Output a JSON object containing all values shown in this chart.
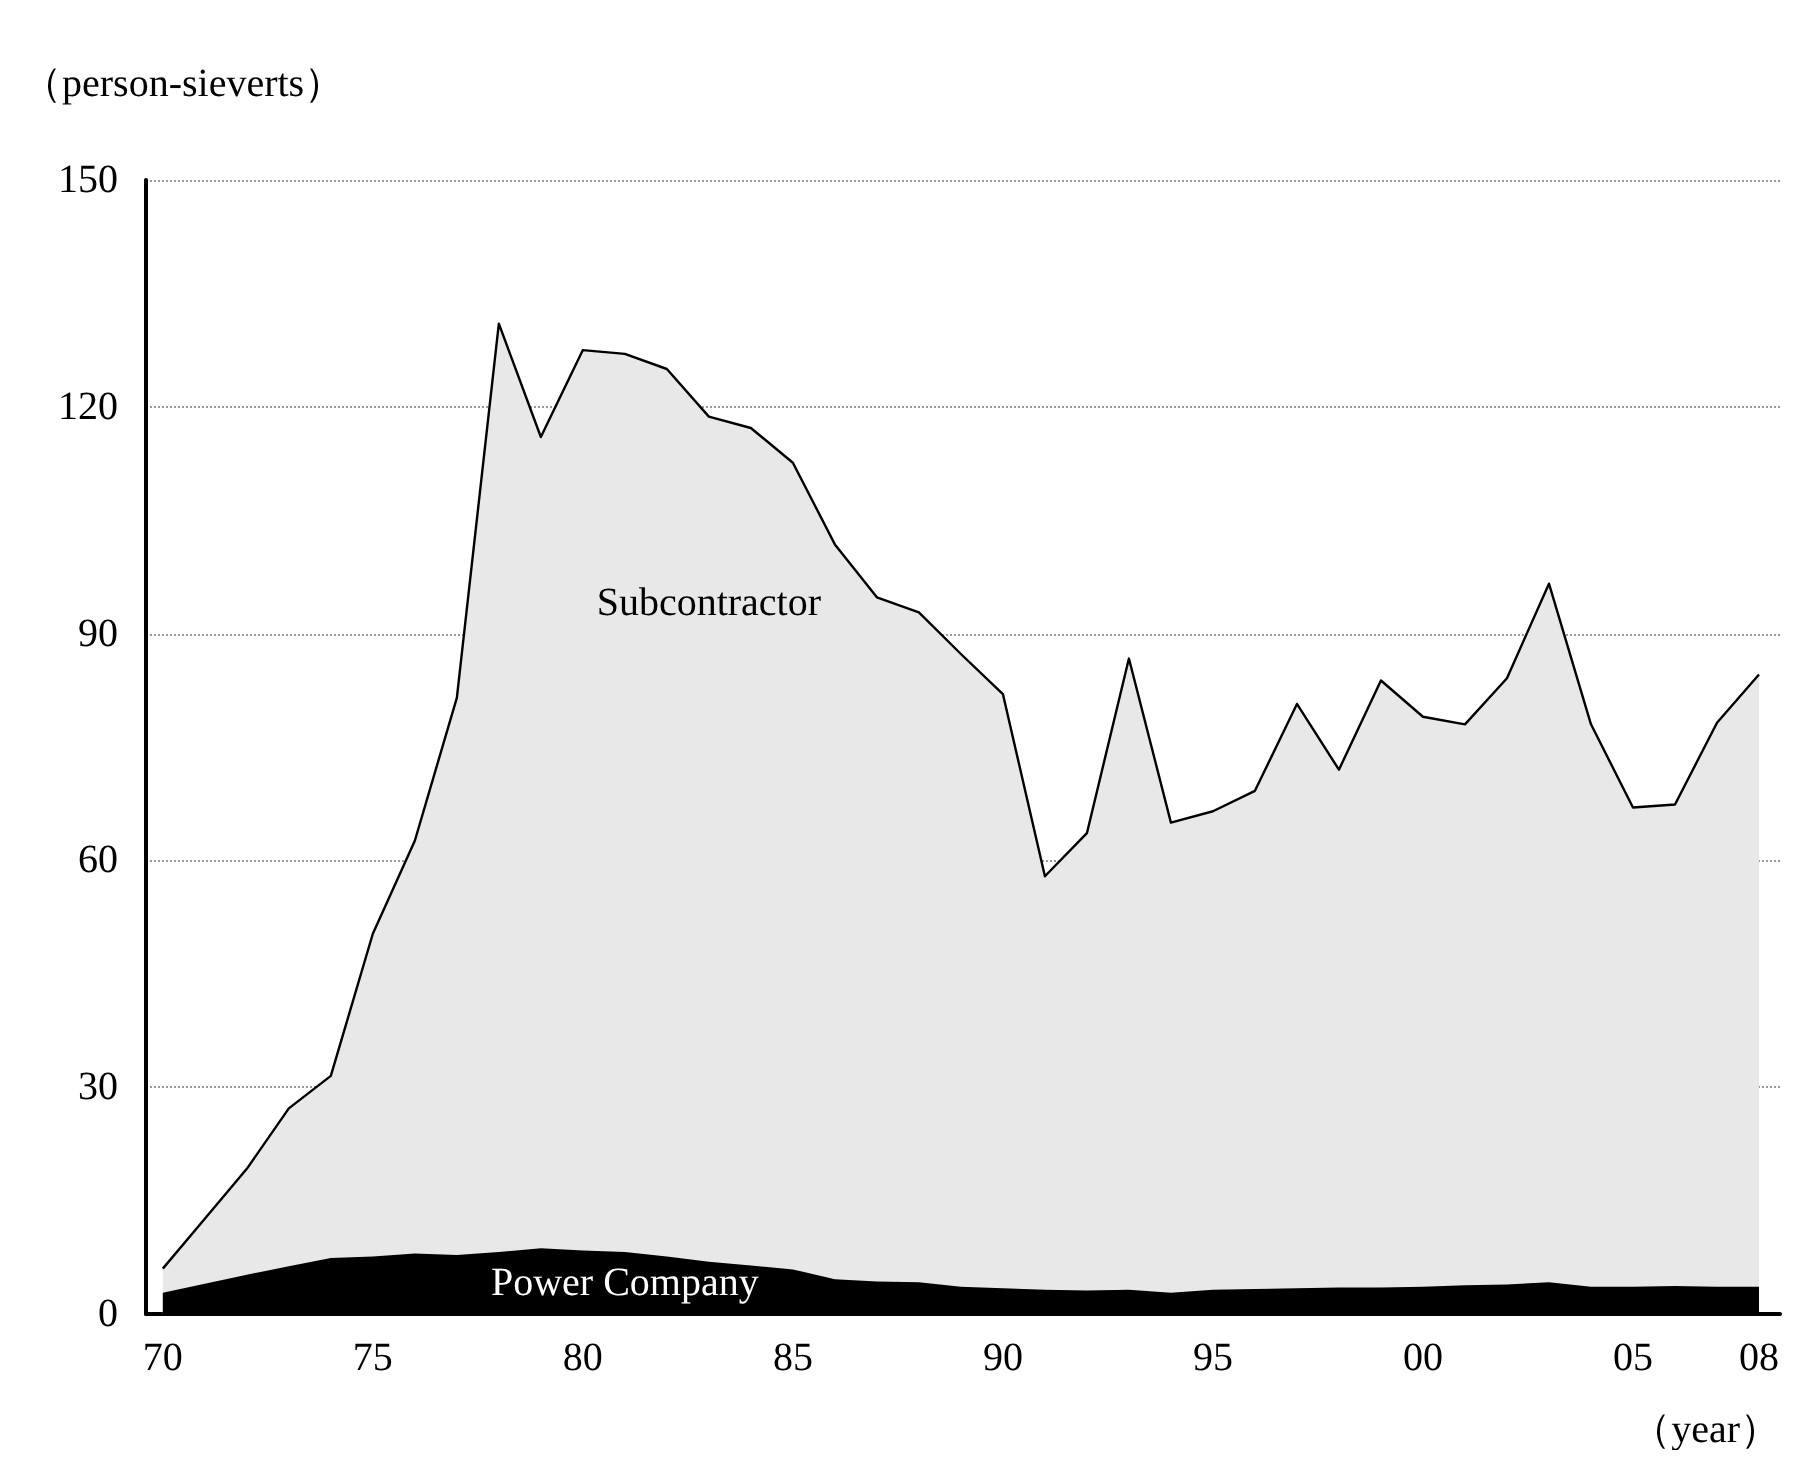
{
  "chart_data": {
    "type": "area",
    "stacked": true,
    "ylabel": "（person-sieverts）",
    "xlabel": "（year）",
    "x": [
      1970,
      1971,
      1972,
      1973,
      1974,
      1975,
      1976,
      1977,
      1978,
      1979,
      1980,
      1981,
      1982,
      1983,
      1984,
      1985,
      1986,
      1987,
      1988,
      1989,
      1990,
      1991,
      1992,
      1993,
      1994,
      1995,
      1996,
      1997,
      1998,
      1999,
      2000,
      2001,
      2002,
      2003,
      2004,
      2005,
      2006,
      2007,
      2008
    ],
    "series": [
      {
        "name": "Power Company",
        "color": "#000000",
        "values": [
          2.8,
          4.0,
          5.2,
          6.3,
          7.4,
          7.6,
          8.0,
          7.8,
          8.2,
          8.7,
          8.4,
          8.2,
          7.6,
          6.9,
          6.4,
          5.9,
          4.6,
          4.3,
          4.2,
          3.6,
          3.4,
          3.2,
          3.1,
          3.2,
          2.8,
          3.2,
          3.3,
          3.4,
          3.5,
          3.5,
          3.6,
          3.8,
          3.9,
          4.2,
          3.6,
          3.6,
          3.7,
          3.6,
          3.6
        ]
      },
      {
        "name": "Subcontractor",
        "color": "#e8e8e8",
        "values": [
          3.2,
          8.6,
          14.0,
          20.9,
          24.1,
          42.7,
          54.6,
          73.7,
          122.8,
          107.3,
          119.1,
          118.8,
          117.4,
          111.8,
          110.8,
          106.7,
          97.2,
          90.5,
          88.6,
          83.7,
          78.6,
          54.7,
          60.5,
          83.5,
          62.2,
          63.3,
          65.9,
          77.3,
          68.5,
          80.3,
          75.4,
          74.2,
          80.2,
          92.4,
          74.4,
          63.4,
          63.7,
          74.6,
          81.0
        ]
      }
    ],
    "xlim": [
      1969.6,
      2008.5
    ],
    "xticks": [
      {
        "value": 1970,
        "label": "70"
      },
      {
        "value": 1975,
        "label": "75"
      },
      {
        "value": 1980,
        "label": "80"
      },
      {
        "value": 1985,
        "label": "85"
      },
      {
        "value": 1990,
        "label": "90"
      },
      {
        "value": 1995,
        "label": "95"
      },
      {
        "value": 2000,
        "label": "00"
      },
      {
        "value": 2005,
        "label": "05"
      },
      {
        "value": 2008,
        "label": "08"
      }
    ],
    "ylim": [
      0,
      150
    ],
    "yticks": [
      0,
      30,
      60,
      90,
      120,
      150
    ],
    "grid": "y",
    "legend": false
  }
}
